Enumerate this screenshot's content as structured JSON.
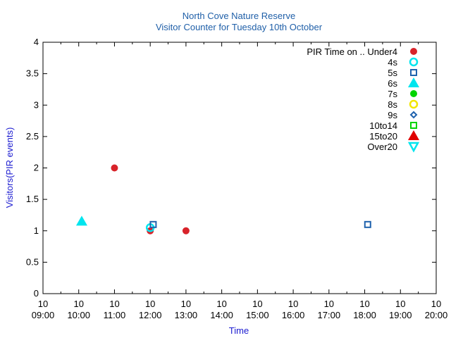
{
  "chart_data": {
    "type": "scatter",
    "title": "North Cove Nature Reserve",
    "subtitle": "Visitor Counter for Tuesday 10th October",
    "xlabel": "Time",
    "ylabel": "Visitors(PIR events)",
    "xlim": [
      "09:00",
      "20:00"
    ],
    "ylim": [
      0,
      4
    ],
    "x_ticks": [
      {
        "day": "10",
        "time": "09:00"
      },
      {
        "day": "10",
        "time": "10:00"
      },
      {
        "day": "10",
        "time": "11:00"
      },
      {
        "day": "10",
        "time": "12:00"
      },
      {
        "day": "10",
        "time": "13:00"
      },
      {
        "day": "10",
        "time": "14:00"
      },
      {
        "day": "10",
        "time": "15:00"
      },
      {
        "day": "10",
        "time": "16:00"
      },
      {
        "day": "10",
        "time": "17:00"
      },
      {
        "day": "10",
        "time": "18:00"
      },
      {
        "day": "10",
        "time": "19:00"
      },
      {
        "day": "10",
        "time": "20:00"
      }
    ],
    "y_ticks": [
      "0",
      "0.5",
      "1",
      "1.5",
      "2",
      "2.5",
      "3",
      "3.5",
      "4"
    ],
    "grid": false,
    "legend_position": "top-right",
    "legend_prefix": "PIR Time on ..",
    "series": [
      {
        "name": "Under4",
        "color": "#d8232a",
        "marker": "circle-filled",
        "points": [
          {
            "x": "11:00",
            "y": 2
          },
          {
            "x": "12:00",
            "y": 1
          },
          {
            "x": "13:00",
            "y": 1
          }
        ]
      },
      {
        "name": "4s",
        "color": "#00e5ee",
        "marker": "circle-open",
        "points": [
          {
            "x": "12:00",
            "y": 1.05
          }
        ]
      },
      {
        "name": "5s",
        "color": "#1f62ad",
        "marker": "square-open",
        "points": [
          {
            "x": "12:05",
            "y": 1.1
          },
          {
            "x": "18:05",
            "y": 1.1
          }
        ]
      },
      {
        "name": "6s",
        "color": "#00e5ee",
        "marker": "triangle-filled",
        "points": [
          {
            "x": "10:05",
            "y": 1.15
          }
        ]
      },
      {
        "name": "7s",
        "color": "#00d400",
        "marker": "circle-filled",
        "points": []
      },
      {
        "name": "8s",
        "color": "#f2e600",
        "marker": "circle-open",
        "points": []
      },
      {
        "name": "9s",
        "color": "#1f62ad",
        "marker": "diamond-open",
        "points": []
      },
      {
        "name": "10to14",
        "color": "#00d400",
        "marker": "square-open",
        "points": []
      },
      {
        "name": "15to20",
        "color": "#e00000",
        "marker": "triangle-filled",
        "points": []
      },
      {
        "name": "Over20",
        "color": "#00e5ee",
        "marker": "triangle-down-open",
        "points": []
      }
    ]
  }
}
